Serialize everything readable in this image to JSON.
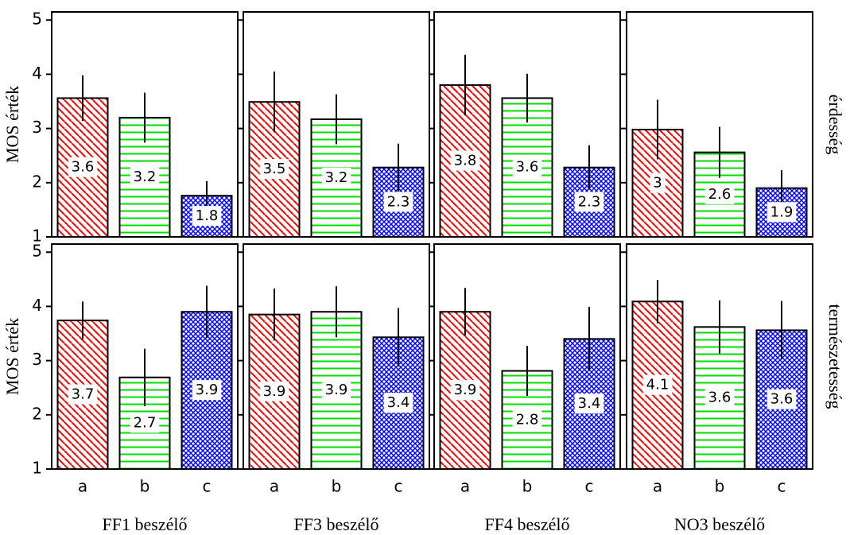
{
  "chart_data": [
    {
      "type": "bar",
      "values": [
        3.56,
        3.2,
        1.76
      ],
      "errors": [
        0.42,
        0.46,
        0.27
      ],
      "value_labels": [
        "3.6",
        "3.2",
        "1.8"
      ],
      "colors": [
        "#ff0000",
        "#00dd00",
        "#0000ff"
      ],
      "ylim": [
        1,
        5.15
      ],
      "yticks": [
        1,
        2,
        3,
        4,
        5
      ],
      "ylabel": "MOS érték"
    },
    {
      "type": "bar",
      "values": [
        3.49,
        3.17,
        2.28
      ],
      "errors": [
        0.56,
        0.46,
        0.44
      ],
      "value_labels": [
        "3.5",
        "3.2",
        "2.3"
      ],
      "colors": [
        "#ff0000",
        "#00dd00",
        "#0000ff"
      ],
      "ylim": [
        1,
        5.15
      ],
      "yticks": [
        1,
        2,
        3,
        4,
        5
      ]
    },
    {
      "type": "bar",
      "values": [
        3.8,
        3.56,
        2.28
      ],
      "errors": [
        0.56,
        0.45,
        0.41
      ],
      "value_labels": [
        "3.8",
        "3.6",
        "2.3"
      ],
      "colors": [
        "#ff0000",
        "#00dd00",
        "#0000ff"
      ],
      "ylim": [
        1,
        5.15
      ],
      "yticks": [
        1,
        2,
        3,
        4,
        5
      ]
    },
    {
      "type": "bar",
      "values": [
        2.98,
        2.56,
        1.9
      ],
      "errors": [
        0.55,
        0.47,
        0.33
      ],
      "value_labels": [
        "3",
        "2.6",
        "1.9"
      ],
      "colors": [
        "#ff0000",
        "#00dd00",
        "#0000ff"
      ],
      "ylim": [
        1,
        5.15
      ],
      "yticks": [
        1,
        2,
        3,
        4,
        5
      ],
      "row_label": "érdesség"
    },
    {
      "type": "bar",
      "categories": [
        "a",
        "b",
        "c"
      ],
      "values": [
        3.74,
        2.69,
        3.9
      ],
      "errors": [
        0.35,
        0.53,
        0.48
      ],
      "value_labels": [
        "3.7",
        "2.7",
        "3.9"
      ],
      "colors": [
        "#ff0000",
        "#00dd00",
        "#0000ff"
      ],
      "ylim": [
        1,
        5.15
      ],
      "yticks": [
        1,
        2,
        3,
        4,
        5
      ],
      "ylabel": "MOS érték",
      "xlabel": "FF1 beszélő"
    },
    {
      "type": "bar",
      "categories": [
        "a",
        "b",
        "c"
      ],
      "values": [
        3.85,
        3.9,
        3.43
      ],
      "errors": [
        0.48,
        0.47,
        0.54
      ],
      "value_labels": [
        "3.9",
        "3.9",
        "3.4"
      ],
      "colors": [
        "#ff0000",
        "#00dd00",
        "#0000ff"
      ],
      "ylim": [
        1,
        5.15
      ],
      "yticks": [
        1,
        2,
        3,
        4,
        5
      ],
      "xlabel": "FF3 beszélő"
    },
    {
      "type": "bar",
      "categories": [
        "a",
        "b",
        "c"
      ],
      "values": [
        3.9,
        2.81,
        3.4
      ],
      "errors": [
        0.44,
        0.46,
        0.59
      ],
      "value_labels": [
        "3.9",
        "2.8",
        "3.4"
      ],
      "colors": [
        "#ff0000",
        "#00dd00",
        "#0000ff"
      ],
      "ylim": [
        1,
        5.15
      ],
      "yticks": [
        1,
        2,
        3,
        4,
        5
      ],
      "xlabel": "FF4 beszélő"
    },
    {
      "type": "bar",
      "categories": [
        "a",
        "b",
        "c"
      ],
      "values": [
        4.09,
        3.62,
        3.56
      ],
      "errors": [
        0.4,
        0.49,
        0.54
      ],
      "value_labels": [
        "4.1",
        "3.6",
        "3.6"
      ],
      "colors": [
        "#ff0000",
        "#00dd00",
        "#0000ff"
      ],
      "ylim": [
        1,
        5.15
      ],
      "yticks": [
        1,
        2,
        3,
        4,
        5
      ],
      "row_label": "természetesség",
      "xlabel": "NO3 beszélő"
    }
  ]
}
